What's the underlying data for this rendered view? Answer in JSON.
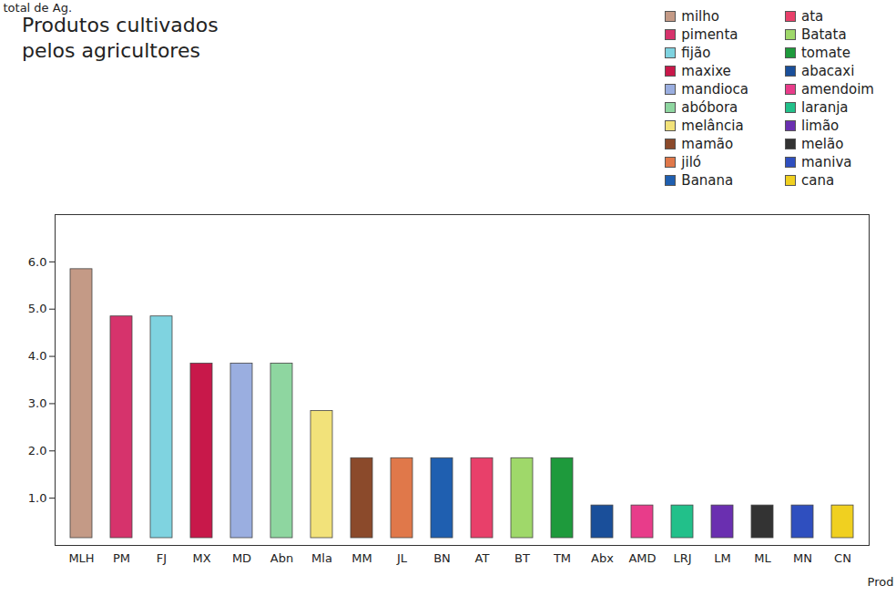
{
  "chart_data": {
    "type": "bar",
    "title": "Produtos cultivados pelos agricultores",
    "y_label": "total de Ag.",
    "x_label": "Prod",
    "categories": [
      "MLH",
      "PM",
      "FJ",
      "MX",
      "MD",
      "Abn",
      "Mla",
      "MM",
      "JL",
      "BN",
      "AT",
      "BT",
      "TM",
      "Abx",
      "AMD",
      "LRJ",
      "LM",
      "ML",
      "MN",
      "CN"
    ],
    "names": [
      "milho",
      "pimenta",
      "fijão",
      "maxixe",
      "mandioca",
      "abóbora",
      "melância",
      "mamão",
      "jiló",
      "Banana",
      "ata",
      "Batata",
      "tomate",
      "abacaxi",
      "amendoim",
      "laranja",
      "limão",
      "melão",
      "maniva",
      "cana"
    ],
    "values": [
      6,
      5,
      5,
      4,
      4,
      4,
      3,
      2,
      2,
      2,
      2,
      2,
      2,
      1,
      1,
      1,
      1,
      1,
      1,
      1
    ],
    "colors": [
      "#c49a86",
      "#d6336c",
      "#7fd3e0",
      "#c8184a",
      "#9aaee0",
      "#8ed6a0",
      "#f2e27a",
      "#8b4a2b",
      "#e0784a",
      "#1f5fb0",
      "#e8406a",
      "#9fd86a",
      "#1e9a3c",
      "#1a4f9a",
      "#e83c8a",
      "#22c08a",
      "#6a2fb0",
      "#333333",
      "#2f4fbf",
      "#f0d020"
    ],
    "ylim": [
      0,
      7
    ],
    "yticks": [
      1,
      2,
      3,
      4,
      5,
      6
    ],
    "grid": false,
    "legend": "top-right"
  }
}
